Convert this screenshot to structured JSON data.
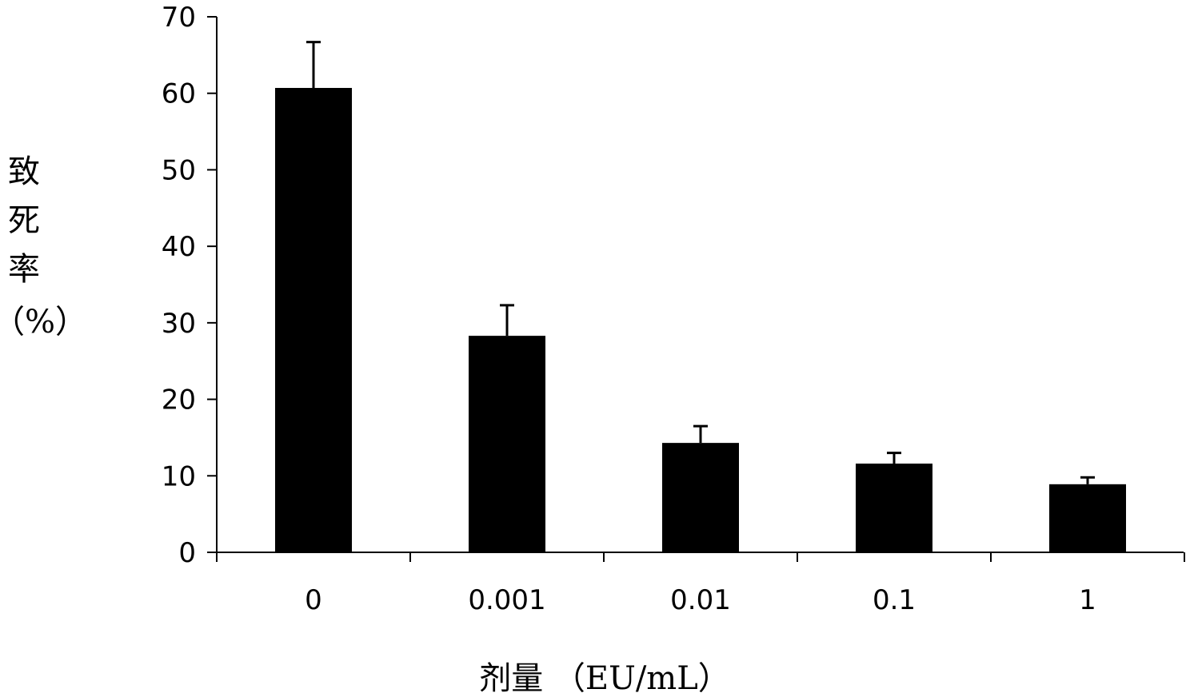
{
  "chart_data": {
    "type": "bar",
    "categories": [
      "0",
      "0.001",
      "0.01",
      "0.1",
      "1"
    ],
    "values": [
      60.7,
      28.3,
      14.3,
      11.6,
      8.9
    ],
    "errors": [
      6.0,
      4.0,
      2.2,
      1.4,
      0.9
    ],
    "title": "",
    "xlabel": "剂量 （EU/mL）",
    "ylabel_lines": [
      "致",
      "死",
      "率",
      "（%）"
    ],
    "ylim": [
      0,
      70
    ],
    "yticks": [
      "0",
      "10",
      "20",
      "30",
      "40",
      "50",
      "60",
      "70"
    ],
    "grid": false,
    "legend": "none",
    "bar_color": "#000000"
  }
}
